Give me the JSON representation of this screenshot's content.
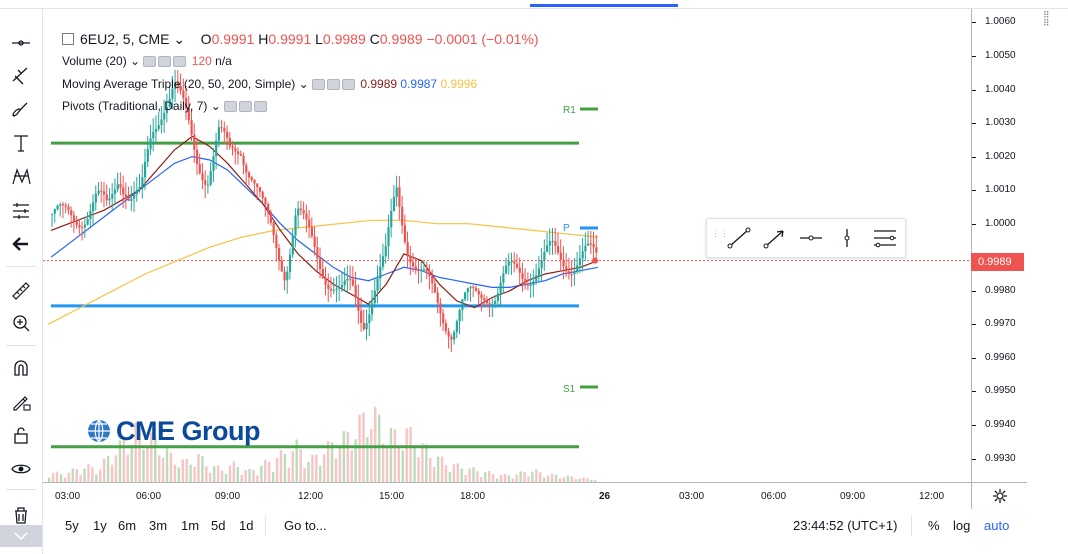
{
  "symbol": {
    "title": "6EU2, 5, CME",
    "open_label": "O",
    "open": "0.9991",
    "high_label": "H",
    "high": "0.9991",
    "low_label": "L",
    "low": "0.9989",
    "close_label": "C",
    "close": "0.9989",
    "change": "−0.0001 (−0.01%)"
  },
  "indicators": [
    {
      "name": "Volume (20)",
      "values": [
        "120",
        "n/a"
      ]
    },
    {
      "name": "Moving Average Triple (20, 50, 200, Simple)",
      "values": [
        "0.9989",
        "0.9987",
        "0.9996"
      ],
      "colors": [
        "#8b1d16",
        "#2962ff",
        "#f5c242"
      ]
    },
    {
      "name": "Pivots (Traditional, Daily, 7)",
      "values": []
    }
  ],
  "price_axis": {
    "ticks": [
      "1.0060",
      "1.0050",
      "1.0040",
      "1.0030",
      "1.0020",
      "1.0010",
      "1.0000",
      "0.9980",
      "0.9970",
      "0.9960",
      "0.9950",
      "0.9940",
      "0.9930"
    ],
    "last_price": "0.9989"
  },
  "time_axis": {
    "ticks": [
      "03:00",
      "06:00",
      "09:00",
      "12:00",
      "15:00",
      "18:00",
      "26",
      "03:00",
      "06:00",
      "09:00",
      "12:00"
    ]
  },
  "pivots": {
    "r1": "R1",
    "p": "P",
    "s1": "S1"
  },
  "logo": {
    "text": "CME Group"
  },
  "ranges": [
    "5y",
    "1y",
    "6m",
    "3m",
    "1m",
    "5d",
    "1d"
  ],
  "goto_label": "Go to...",
  "clock": "23:44:52 (UTC+1)",
  "scale_options": [
    "%",
    "log",
    "auto"
  ],
  "colors": {
    "up": "#26a69a",
    "down": "#ef5350",
    "pivot_green": "#43a047",
    "pivot_blue": "#2196f3"
  },
  "chart_data": {
    "type": "candlestick",
    "symbol": "6EU2",
    "interval": "5",
    "ylim": [
      0.9923,
      1.0064
    ],
    "ma_series": [
      {
        "name": "MA 20",
        "color": "#8b1d16"
      },
      {
        "name": "MA 50",
        "color": "#2962ff"
      },
      {
        "name": "MA 200",
        "color": "#f5c242"
      }
    ],
    "pivot_levels": [
      {
        "name": "R1",
        "value": 1.0024,
        "color": "#43a047"
      },
      {
        "name": "P",
        "value": 0.99755,
        "color": "#2196f3"
      },
      {
        "name": "S1",
        "value": 0.99335,
        "color": "#43a047"
      }
    ],
    "close_path": [
      1.0003,
      1.0001,
      1.0002,
      1.0004,
      1.0007,
      1.0003,
      1.0016,
      1.0009,
      1.0007,
      1.0026,
      1.0037,
      1.0042,
      1.0031,
      1.002,
      1.0015,
      1.0026,
      1.002,
      1.0024,
      1.0015,
      1.0003,
      0.9995,
      0.9987,
      1.0004,
      0.9996,
      0.999,
      0.9984,
      0.9978,
      0.998,
      0.9972,
      0.9981,
      0.9988,
      1.0011,
      0.9995,
      0.9985,
      0.998,
      0.9975,
      0.9969,
      0.9975,
      0.9978,
      0.9981,
      0.9979,
      0.9984,
      0.9986,
      0.9986,
      0.9987,
      0.9991,
      0.999,
      0.9989,
      0.999,
      0.9989
    ],
    "volume_path": [
      8,
      6,
      9,
      12,
      10,
      22,
      30,
      40,
      35,
      28,
      18,
      15,
      20,
      12,
      10,
      14,
      8,
      12,
      18,
      22,
      28,
      16,
      24,
      30,
      35,
      45,
      55,
      40,
      35,
      38,
      28,
      20,
      15,
      12,
      10,
      8,
      6,
      5,
      7,
      9,
      6,
      5,
      4,
      3,
      2
    ],
    "ma20_path": [
      0.9998,
      1.0,
      1.0002,
      1.0004,
      1.0007,
      1.001,
      1.0016,
      1.0022,
      1.0026,
      1.0023,
      1.0018,
      1.0012,
      1.0006,
      0.9998,
      0.9991,
      0.9986,
      0.9982,
      0.9979,
      0.9976,
      0.9982,
      0.9991,
      0.9989,
      0.9982,
      0.9977,
      0.9975,
      0.9978,
      0.998,
      0.9983,
      0.9985,
      0.9986,
      0.9987,
      0.9989
    ],
    "ma50_path": [
      0.999,
      0.9994,
      0.9998,
      1.0002,
      1.0006,
      1.001,
      1.0014,
      1.0018,
      1.002,
      1.0019,
      1.0016,
      1.0011,
      1.0006,
      1.0,
      0.9995,
      0.9991,
      0.9987,
      0.9984,
      0.9983,
      0.9985,
      0.9987,
      0.9986,
      0.9984,
      0.9983,
      0.9982,
      0.9981,
      0.9981,
      0.9982,
      0.9983,
      0.9985,
      0.9986,
      0.9987
    ],
    "ma200_path": [
      0.997,
      0.9975,
      0.998,
      0.9985,
      0.9989,
      0.9993,
      0.9996,
      0.9998,
      0.9999,
      1.0,
      1.0001,
      1.0001,
      1.0,
      1.0,
      0.9999,
      0.9998,
      0.9997,
      0.9996
    ]
  }
}
